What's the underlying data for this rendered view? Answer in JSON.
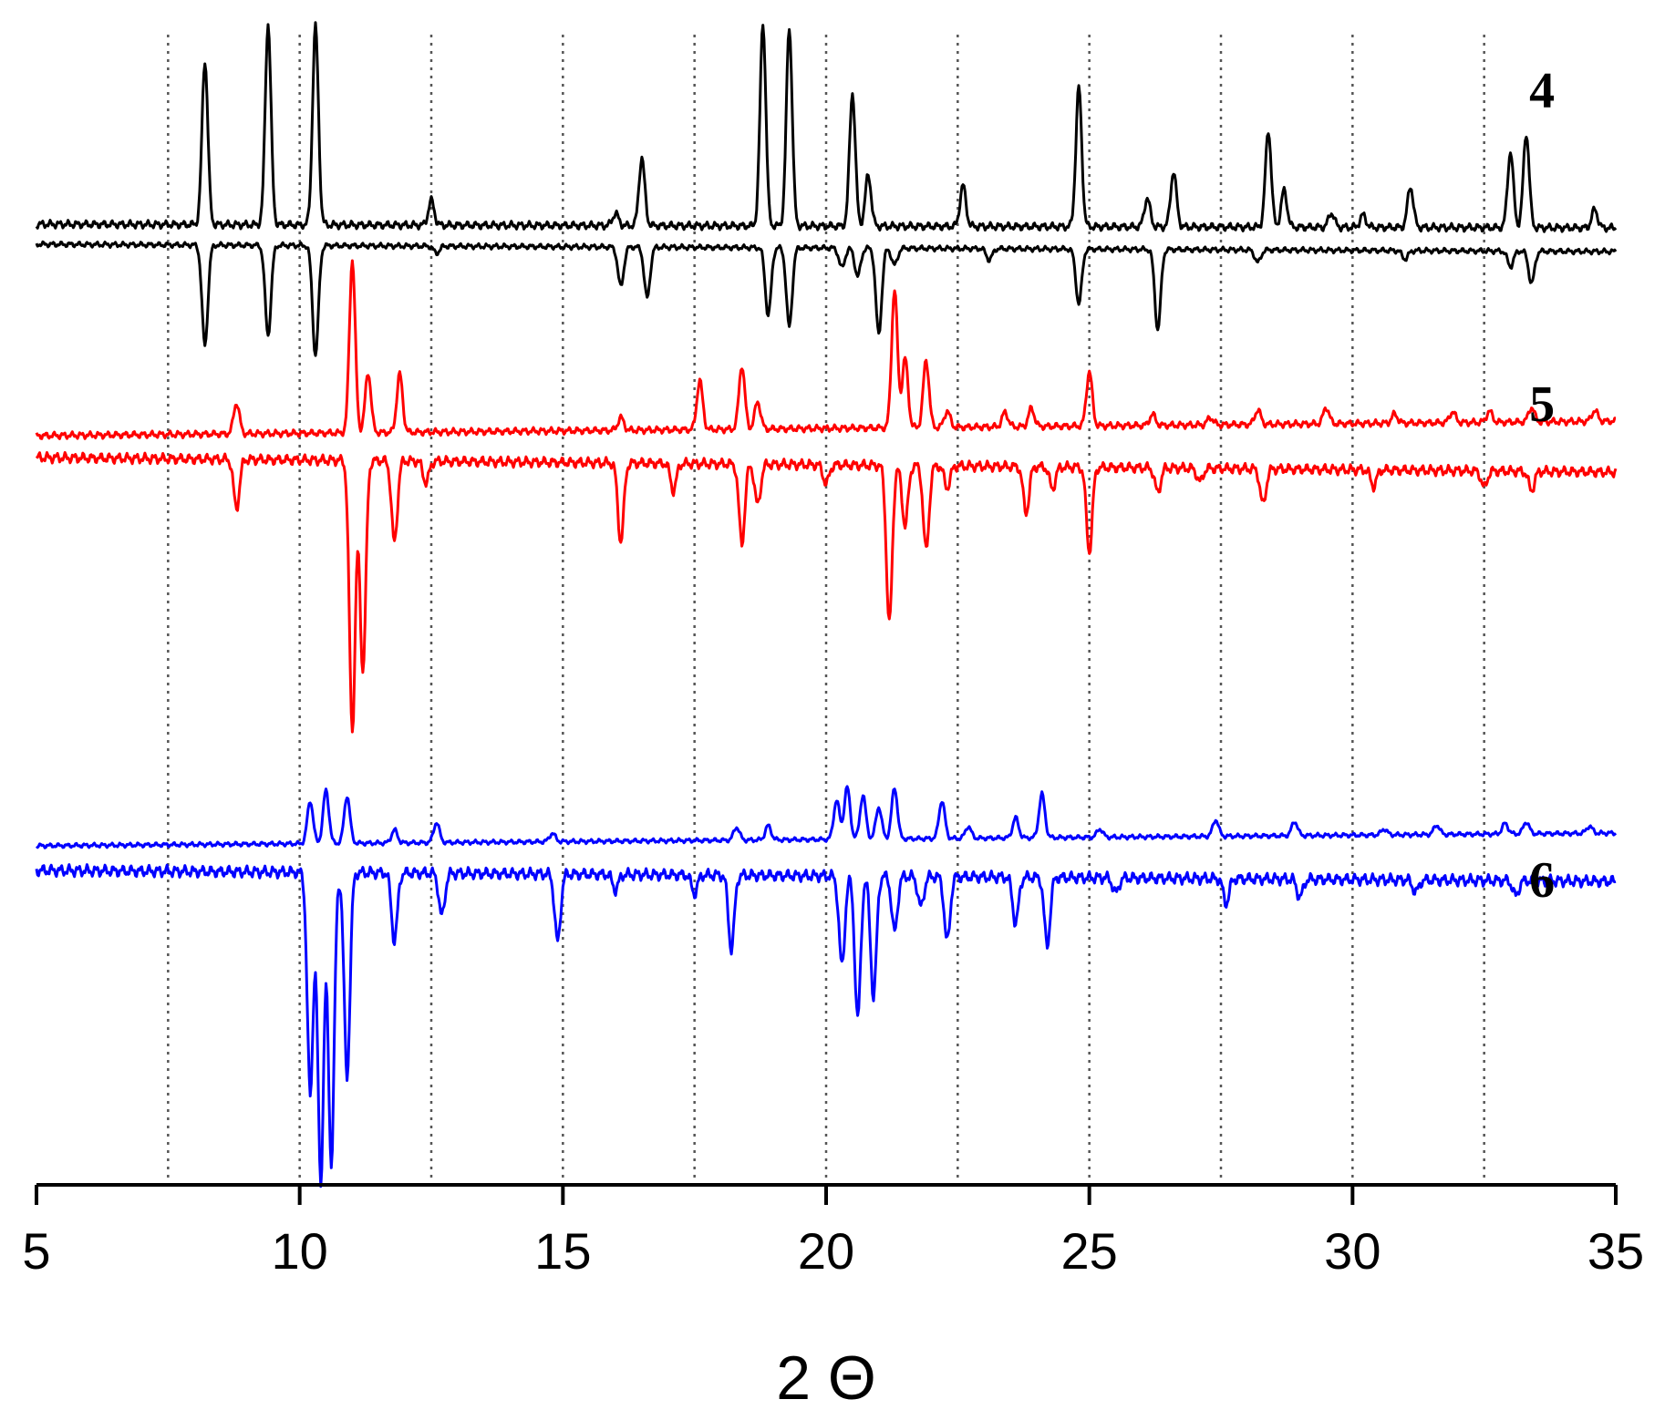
{
  "chart_data": {
    "type": "line",
    "title": "",
    "xlabel": "2 Θ",
    "ylabel": "",
    "xlim": [
      5,
      35
    ],
    "xticks": [
      5,
      10,
      15,
      20,
      25,
      30,
      35
    ],
    "xtick_labels": [
      "5",
      "10",
      "15",
      "20",
      "25",
      "30",
      "35"
    ],
    "grid": "vertical dotted lines at every 2.5",
    "labels": {
      "s4": "4",
      "s5": "5",
      "s6": "6"
    },
    "series": [
      {
        "key": "s4",
        "color": "#000000",
        "peaks": [
          [
            8.2,
            0.8
          ],
          [
            9.4,
            0.98
          ],
          [
            10.3,
            0.97
          ],
          [
            12.5,
            0.12
          ],
          [
            16.0,
            0.06
          ],
          [
            16.5,
            0.33
          ],
          [
            18.8,
            0.99
          ],
          [
            19.3,
            0.97
          ],
          [
            20.5,
            0.65
          ],
          [
            20.8,
            0.25
          ],
          [
            22.6,
            0.2
          ],
          [
            24.8,
            0.68
          ],
          [
            26.1,
            0.14
          ],
          [
            26.6,
            0.27
          ],
          [
            28.4,
            0.47
          ],
          [
            28.7,
            0.18
          ],
          [
            29.6,
            0.07
          ],
          [
            30.2,
            0.06
          ],
          [
            31.1,
            0.2
          ],
          [
            33.0,
            0.37
          ],
          [
            33.3,
            0.46
          ],
          [
            34.6,
            0.09
          ]
        ]
      },
      {
        "key": "s4_simulated",
        "color": "#000000",
        "peaks": [
          [
            8.2,
            0.71
          ],
          [
            9.4,
            0.64
          ],
          [
            10.3,
            0.78
          ],
          [
            12.6,
            0.05
          ],
          [
            16.1,
            0.28
          ],
          [
            16.6,
            0.36
          ],
          [
            18.9,
            0.48
          ],
          [
            19.3,
            0.56
          ],
          [
            20.3,
            0.14
          ],
          [
            20.6,
            0.2
          ],
          [
            21.0,
            0.61
          ],
          [
            21.3,
            0.12
          ],
          [
            23.1,
            0.08
          ],
          [
            24.8,
            0.39
          ],
          [
            26.3,
            0.57
          ],
          [
            28.2,
            0.09
          ],
          [
            31.0,
            0.06
          ],
          [
            33.0,
            0.11
          ],
          [
            33.4,
            0.23
          ]
        ]
      },
      {
        "key": "s5",
        "color": "#ff0000",
        "peaks": [
          [
            8.8,
            0.17
          ],
          [
            11.0,
            0.95
          ],
          [
            11.3,
            0.33
          ],
          [
            11.9,
            0.32
          ],
          [
            16.1,
            0.07
          ],
          [
            17.6,
            0.27
          ],
          [
            18.4,
            0.35
          ],
          [
            18.7,
            0.15
          ],
          [
            21.3,
            0.76
          ],
          [
            21.5,
            0.38
          ],
          [
            21.9,
            0.37
          ],
          [
            22.3,
            0.09
          ],
          [
            23.4,
            0.08
          ],
          [
            23.9,
            0.1
          ],
          [
            25.0,
            0.3
          ],
          [
            26.2,
            0.06
          ],
          [
            27.3,
            0.04
          ],
          [
            28.2,
            0.08
          ],
          [
            29.5,
            0.09
          ],
          [
            30.8,
            0.05
          ],
          [
            31.9,
            0.06
          ],
          [
            32.6,
            0.06
          ],
          [
            33.4,
            0.08
          ],
          [
            34.6,
            0.06
          ]
        ]
      },
      {
        "key": "s5_simulated",
        "color": "#ff0000",
        "peaks": [
          [
            8.8,
            0.18
          ],
          [
            11.0,
            0.99
          ],
          [
            11.2,
            0.77
          ],
          [
            11.8,
            0.3
          ],
          [
            12.4,
            0.08
          ],
          [
            16.1,
            0.29
          ],
          [
            17.1,
            0.1
          ],
          [
            18.4,
            0.29
          ],
          [
            18.7,
            0.15
          ],
          [
            20.0,
            0.07
          ],
          [
            21.2,
            0.58
          ],
          [
            21.5,
            0.22
          ],
          [
            21.9,
            0.31
          ],
          [
            22.3,
            0.08
          ],
          [
            23.8,
            0.17
          ],
          [
            24.3,
            0.08
          ],
          [
            25.0,
            0.31
          ],
          [
            26.3,
            0.09
          ],
          [
            27.1,
            0.05
          ],
          [
            28.3,
            0.13
          ],
          [
            30.4,
            0.06
          ],
          [
            32.5,
            0.06
          ],
          [
            33.4,
            0.07
          ]
        ]
      },
      {
        "key": "s6",
        "color": "#0000ff",
        "peaks": [
          [
            10.2,
            0.36
          ],
          [
            10.5,
            0.45
          ],
          [
            10.9,
            0.4
          ],
          [
            11.8,
            0.11
          ],
          [
            12.6,
            0.17
          ],
          [
            14.8,
            0.07
          ],
          [
            18.3,
            0.11
          ],
          [
            18.9,
            0.12
          ],
          [
            20.2,
            0.33
          ],
          [
            20.4,
            0.44
          ],
          [
            20.7,
            0.37
          ],
          [
            21.0,
            0.27
          ],
          [
            21.3,
            0.43
          ],
          [
            22.2,
            0.32
          ],
          [
            22.7,
            0.1
          ],
          [
            23.6,
            0.17
          ],
          [
            24.1,
            0.37
          ],
          [
            25.2,
            0.07
          ],
          [
            27.4,
            0.14
          ],
          [
            28.9,
            0.12
          ],
          [
            30.6,
            0.05
          ],
          [
            31.6,
            0.08
          ],
          [
            32.9,
            0.09
          ],
          [
            33.3,
            0.1
          ],
          [
            34.5,
            0.06
          ]
        ]
      },
      {
        "key": "s6_simulated",
        "color": "#0000ff",
        "peaks": [
          [
            10.2,
            0.72
          ],
          [
            10.4,
            1.0
          ],
          [
            10.6,
            0.94
          ],
          [
            10.9,
            0.66
          ],
          [
            11.8,
            0.22
          ],
          [
            12.7,
            0.14
          ],
          [
            14.9,
            0.22
          ],
          [
            16.0,
            0.05
          ],
          [
            17.5,
            0.06
          ],
          [
            18.2,
            0.24
          ],
          [
            20.3,
            0.29
          ],
          [
            20.6,
            0.46
          ],
          [
            20.9,
            0.39
          ],
          [
            21.3,
            0.18
          ],
          [
            21.8,
            0.1
          ],
          [
            22.3,
            0.21
          ],
          [
            23.6,
            0.15
          ],
          [
            24.2,
            0.22
          ],
          [
            25.5,
            0.05
          ],
          [
            27.6,
            0.08
          ],
          [
            29.0,
            0.06
          ],
          [
            31.2,
            0.04
          ],
          [
            33.1,
            0.05
          ]
        ]
      }
    ]
  }
}
